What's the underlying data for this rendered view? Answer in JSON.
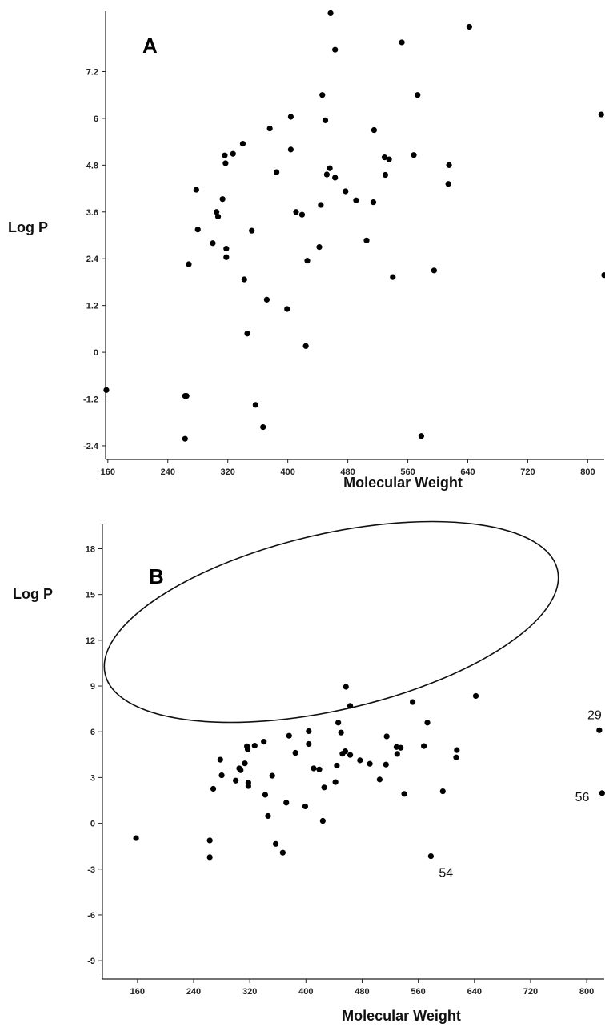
{
  "chart_data": [
    {
      "type": "scatter",
      "panel_label": "A",
      "xlabel": "Molecular Weight",
      "ylabel": "Log P",
      "xlim": [
        157,
        822
      ],
      "ylim": [
        -2.75,
        8.75
      ],
      "x_ticks": [
        160,
        240,
        320,
        400,
        480,
        560,
        640,
        720,
        800
      ],
      "y_ticks": [
        -2.4,
        -1.2,
        0,
        1.2,
        2.4,
        3.6,
        4.8,
        6,
        7.2
      ],
      "y_tick_labels": [
        "-2.4",
        "-1.2",
        "0",
        "1.2",
        "2.4",
        "3.6",
        "4.8",
        "6",
        "7.2"
      ],
      "grid": false,
      "points": [
        {
          "x": 158,
          "y": -0.97
        },
        {
          "x": 263,
          "y": -1.12
        },
        {
          "x": 265,
          "y": -1.12
        },
        {
          "x": 263,
          "y": -2.22
        },
        {
          "x": 268,
          "y": 2.26
        },
        {
          "x": 278,
          "y": 4.17
        },
        {
          "x": 280,
          "y": 3.15
        },
        {
          "x": 300,
          "y": 2.8
        },
        {
          "x": 305,
          "y": 3.6
        },
        {
          "x": 307,
          "y": 3.48
        },
        {
          "x": 313,
          "y": 3.93
        },
        {
          "x": 316,
          "y": 5.05
        },
        {
          "x": 317,
          "y": 4.85
        },
        {
          "x": 318,
          "y": 2.66
        },
        {
          "x": 318,
          "y": 2.44
        },
        {
          "x": 327,
          "y": 5.09
        },
        {
          "x": 340,
          "y": 5.35
        },
        {
          "x": 342,
          "y": 1.87
        },
        {
          "x": 346,
          "y": 0.48
        },
        {
          "x": 352,
          "y": 3.12
        },
        {
          "x": 357,
          "y": -1.35
        },
        {
          "x": 367,
          "y": -1.92
        },
        {
          "x": 372,
          "y": 1.35
        },
        {
          "x": 376,
          "y": 5.74
        },
        {
          "x": 385,
          "y": 4.62
        },
        {
          "x": 399,
          "y": 1.11
        },
        {
          "x": 404,
          "y": 6.04
        },
        {
          "x": 404,
          "y": 5.2
        },
        {
          "x": 411,
          "y": 3.6
        },
        {
          "x": 419,
          "y": 3.53
        },
        {
          "x": 424,
          "y": 0.16
        },
        {
          "x": 426,
          "y": 2.35
        },
        {
          "x": 442,
          "y": 2.7
        },
        {
          "x": 444,
          "y": 3.78
        },
        {
          "x": 446,
          "y": 6.6
        },
        {
          "x": 450,
          "y": 5.95
        },
        {
          "x": 452,
          "y": 4.56
        },
        {
          "x": 456,
          "y": 4.72
        },
        {
          "x": 457,
          "y": 8.7
        },
        {
          "x": 463,
          "y": 7.76
        },
        {
          "x": 463,
          "y": 4.48
        },
        {
          "x": 477,
          "y": 4.13
        },
        {
          "x": 491,
          "y": 3.9
        },
        {
          "x": 505,
          "y": 2.87
        },
        {
          "x": 514,
          "y": 3.85
        },
        {
          "x": 515,
          "y": 5.7
        },
        {
          "x": 529,
          "y": 5.0
        },
        {
          "x": 530,
          "y": 4.55
        },
        {
          "x": 535,
          "y": 4.95
        },
        {
          "x": 540,
          "y": 1.93
        },
        {
          "x": 552,
          "y": 7.95
        },
        {
          "x": 568,
          "y": 5.06
        },
        {
          "x": 573,
          "y": 6.6
        },
        {
          "x": 578,
          "y": -2.15
        },
        {
          "x": 595,
          "y": 2.1
        },
        {
          "x": 614,
          "y": 4.32
        },
        {
          "x": 615,
          "y": 4.8
        },
        {
          "x": 642,
          "y": 8.35
        },
        {
          "x": 818,
          "y": 6.1
        },
        {
          "x": 822,
          "y": 1.98
        }
      ]
    },
    {
      "type": "scatter",
      "panel_label": "B",
      "xlabel": "Molecular Weight",
      "ylabel": "Log P",
      "xlim": [
        110,
        825
      ],
      "ylim": [
        -10.2,
        19.6
      ],
      "x_ticks": [
        160,
        240,
        320,
        400,
        480,
        560,
        640,
        720,
        800
      ],
      "y_ticks": [
        -9,
        -6,
        -3,
        0,
        3,
        6,
        9,
        12,
        15,
        18
      ],
      "y_tick_labels": [
        "-9",
        "-6",
        "-3",
        "0",
        "3",
        "6",
        "9",
        "12",
        "15",
        "18"
      ],
      "grid": false,
      "annotations": [
        {
          "text": "29",
          "x": 818,
          "y": 6.1
        },
        {
          "text": "56",
          "x": 822,
          "y": 1.98
        },
        {
          "text": "54",
          "x": 578,
          "y": -2.15
        }
      ],
      "points": [
        {
          "x": 158,
          "y": -0.97
        },
        {
          "x": 263,
          "y": -1.12
        },
        {
          "x": 263,
          "y": -2.22
        },
        {
          "x": 268,
          "y": 2.26
        },
        {
          "x": 278,
          "y": 4.17
        },
        {
          "x": 280,
          "y": 3.15
        },
        {
          "x": 300,
          "y": 2.8
        },
        {
          "x": 305,
          "y": 3.6
        },
        {
          "x": 307,
          "y": 3.48
        },
        {
          "x": 313,
          "y": 3.93
        },
        {
          "x": 316,
          "y": 5.05
        },
        {
          "x": 317,
          "y": 4.85
        },
        {
          "x": 318,
          "y": 2.66
        },
        {
          "x": 318,
          "y": 2.44
        },
        {
          "x": 327,
          "y": 5.09
        },
        {
          "x": 340,
          "y": 5.35
        },
        {
          "x": 342,
          "y": 1.87
        },
        {
          "x": 346,
          "y": 0.48
        },
        {
          "x": 352,
          "y": 3.12
        },
        {
          "x": 357,
          "y": -1.35
        },
        {
          "x": 367,
          "y": -1.92
        },
        {
          "x": 372,
          "y": 1.35
        },
        {
          "x": 376,
          "y": 5.74
        },
        {
          "x": 385,
          "y": 4.62
        },
        {
          "x": 399,
          "y": 1.11
        },
        {
          "x": 404,
          "y": 6.04
        },
        {
          "x": 404,
          "y": 5.2
        },
        {
          "x": 411,
          "y": 3.6
        },
        {
          "x": 419,
          "y": 3.53
        },
        {
          "x": 424,
          "y": 0.16
        },
        {
          "x": 426,
          "y": 2.35
        },
        {
          "x": 442,
          "y": 2.7
        },
        {
          "x": 444,
          "y": 3.78
        },
        {
          "x": 446,
          "y": 6.6
        },
        {
          "x": 450,
          "y": 5.95
        },
        {
          "x": 452,
          "y": 4.56
        },
        {
          "x": 456,
          "y": 4.72
        },
        {
          "x": 457,
          "y": 8.95
        },
        {
          "x": 463,
          "y": 7.7
        },
        {
          "x": 463,
          "y": 4.48
        },
        {
          "x": 477,
          "y": 4.13
        },
        {
          "x": 491,
          "y": 3.9
        },
        {
          "x": 505,
          "y": 2.87
        },
        {
          "x": 514,
          "y": 3.85
        },
        {
          "x": 515,
          "y": 5.7
        },
        {
          "x": 529,
          "y": 5.0
        },
        {
          "x": 530,
          "y": 4.55
        },
        {
          "x": 535,
          "y": 4.95
        },
        {
          "x": 540,
          "y": 1.93
        },
        {
          "x": 552,
          "y": 7.95
        },
        {
          "x": 568,
          "y": 5.06
        },
        {
          "x": 573,
          "y": 6.6
        },
        {
          "x": 578,
          "y": -2.15
        },
        {
          "x": 595,
          "y": 2.1
        },
        {
          "x": 614,
          "y": 4.32
        },
        {
          "x": 615,
          "y": 4.8
        },
        {
          "x": 642,
          "y": 8.35
        },
        {
          "x": 818,
          "y": 6.1
        },
        {
          "x": 822,
          "y": 1.98
        }
      ]
    }
  ]
}
